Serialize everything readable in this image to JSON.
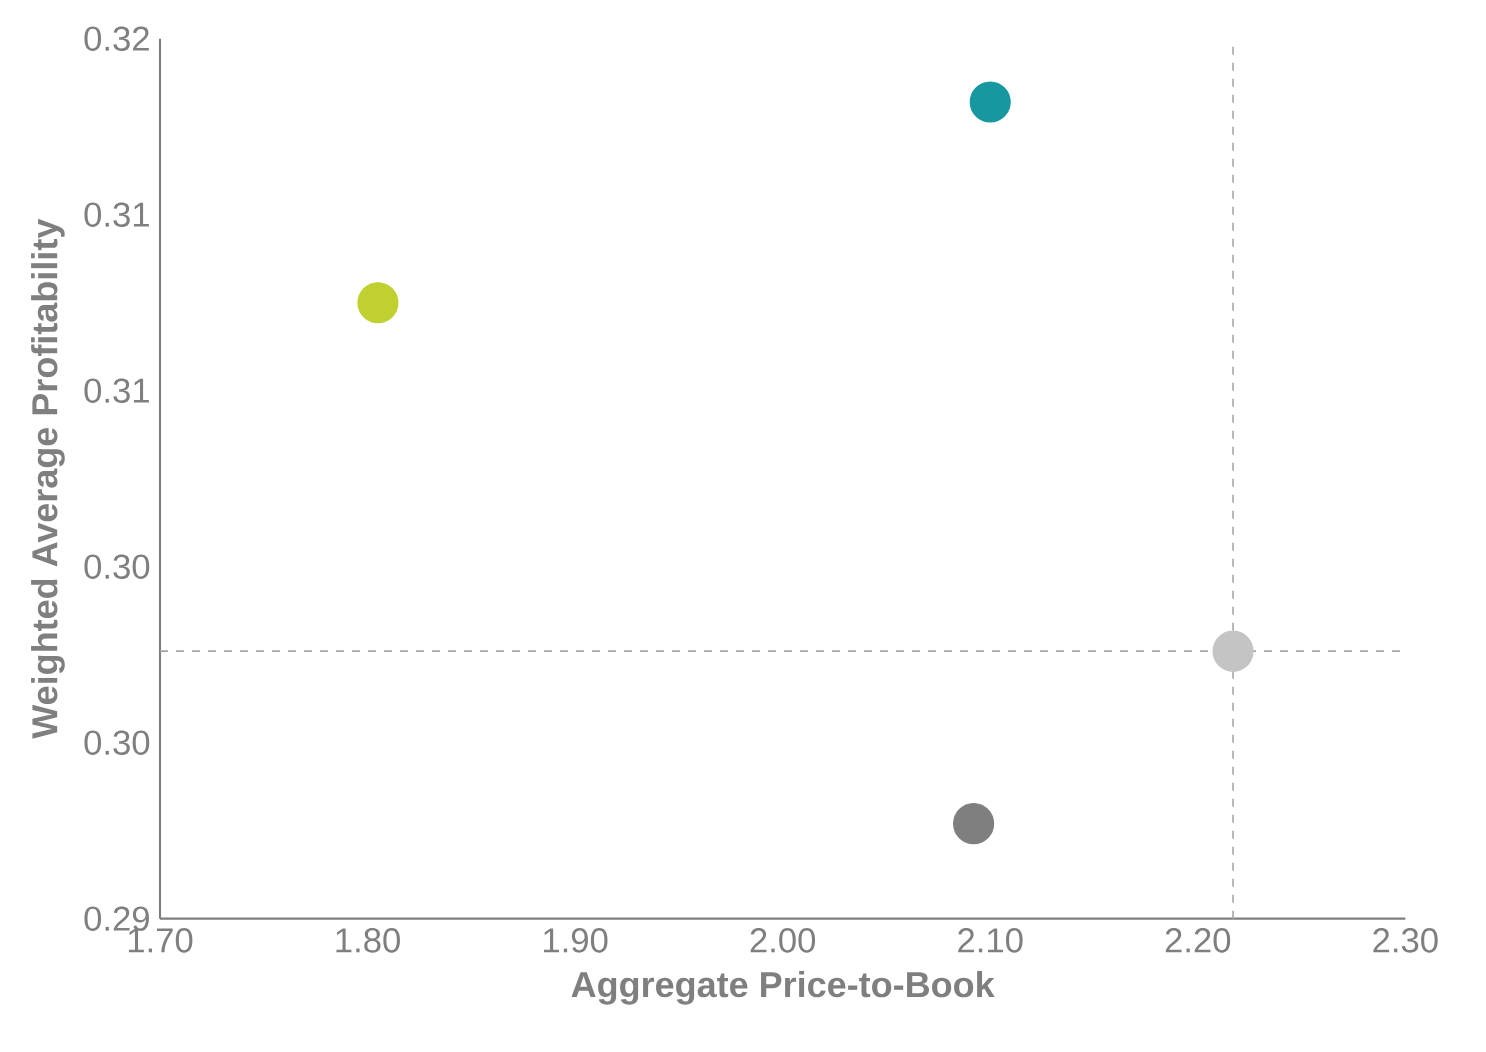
{
  "chart_data": {
    "type": "scatter",
    "xlabel": "Aggregate Price-to-Book",
    "ylabel": "Weighted Average Profitability",
    "x": [
      1.805,
      2.1,
      2.217,
      2.092
    ],
    "values": [
      0.3125,
      0.3182,
      0.3026,
      0.2977
    ],
    "colors": [
      "#bfd030",
      "#17979f",
      "#c4c4c4",
      "#7f7f7f"
    ],
    "marker": "circle",
    "xlim": [
      1.7,
      2.3
    ],
    "xticks": [
      {
        "value": 1.7,
        "label": "1.70"
      },
      {
        "value": 1.8,
        "label": "1.80"
      },
      {
        "value": 1.9,
        "label": "1.90"
      },
      {
        "value": 2.0,
        "label": "2.00"
      },
      {
        "value": 2.1,
        "label": "2.10"
      },
      {
        "value": 2.2,
        "label": "2.20"
      },
      {
        "value": 2.3,
        "label": "2.30"
      }
    ],
    "ylim": [
      0.295,
      0.32
    ],
    "yticks": [
      {
        "value": 0.295,
        "label": "0.29"
      },
      {
        "value": 0.3,
        "label": "0.30"
      },
      {
        "value": 0.305,
        "label": "0.30"
      },
      {
        "value": 0.31,
        "label": "0.31"
      },
      {
        "value": 0.315,
        "label": "0.31"
      },
      {
        "value": 0.32,
        "label": "0.32"
      }
    ],
    "ref_lines": [
      {
        "axis": "x",
        "value": 2.217,
        "color": "#a6a6a6",
        "line_style": "dashed"
      },
      {
        "axis": "y",
        "value": 0.3026,
        "color": "#a6a6a6",
        "line_style": "dashed"
      }
    ],
    "grid": false
  }
}
